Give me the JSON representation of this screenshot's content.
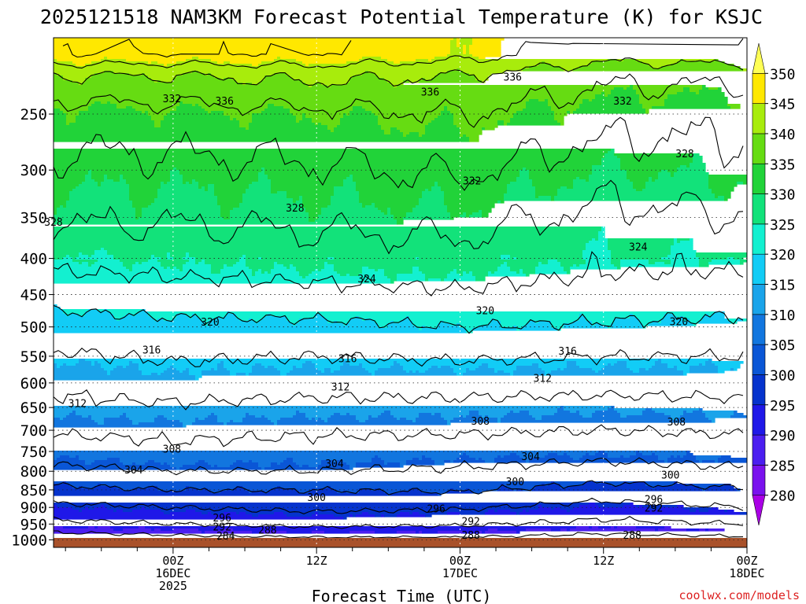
{
  "chart_data": {
    "type": "heatmap",
    "subtype": "time-height filled contour",
    "title": "2025121518 NAM3KM Forecast Potential Temperature (K) for KSJC",
    "xlabel": "Forecast Time (UTC)",
    "ylabel": "",
    "credit": "coolwx.com/models",
    "y_axis": {
      "unit": "hPa",
      "scale": "log-pressure",
      "range_hpa": [
        1025,
        195
      ],
      "ticks": [
        250,
        300,
        350,
        400,
        450,
        500,
        550,
        600,
        650,
        700,
        750,
        800,
        850,
        900,
        950,
        1000
      ],
      "tick_labels": [
        "250",
        "300",
        "350",
        "400",
        "450",
        "500",
        "550",
        "600",
        "650",
        "700",
        "750",
        "800",
        "850",
        "900",
        "950",
        "1000"
      ]
    },
    "x_axis": {
      "range_forecast_hours": [
        -4,
        54
      ],
      "ticks": [
        {
          "hour": 6,
          "lines": [
            "00Z",
            "16DEC",
            "2025"
          ]
        },
        {
          "hour": 18,
          "lines": [
            "12Z"
          ]
        },
        {
          "hour": 30,
          "lines": [
            "00Z",
            "17DEC"
          ]
        },
        {
          "hour": 42,
          "lines": [
            "12Z"
          ]
        },
        {
          "hour": 54,
          "lines": [
            "00Z",
            "18DEC"
          ]
        }
      ]
    },
    "colorbar": {
      "label_values": [
        350,
        345,
        340,
        335,
        330,
        325,
        320,
        315,
        310,
        305,
        300,
        295,
        290,
        285,
        280
      ],
      "levels": [
        280,
        285,
        290,
        295,
        300,
        305,
        310,
        315,
        320,
        325,
        330,
        335,
        340,
        345,
        350
      ],
      "colors": [
        "#aa00e6",
        "#7a12ee",
        "#4b1ef0",
        "#1f18e8",
        "#0533cd",
        "#0a56d6",
        "#1276df",
        "#1aa4ea",
        "#12ccf6",
        "#13f0d0",
        "#12e27a",
        "#21d339",
        "#66dc12",
        "#a8ec0c",
        "#ffe800",
        "#ffff55"
      ],
      "extends": "both"
    },
    "contour_interval_K": 4,
    "ground_color": "#a9512a",
    "theta_profiles": [
      {
        "hour": -4,
        "pressure_hpa": [
          1020,
          985,
          950,
          900,
          850,
          800,
          750,
          700,
          650,
          600,
          550,
          500,
          450,
          400,
          350,
          300,
          250,
          220,
          205
        ],
        "theta_K": [
          282,
          287,
          291,
          295,
          299,
          303,
          306,
          308.5,
          311,
          313,
          315.5,
          318,
          322,
          325,
          328.5,
          331,
          334,
          340,
          348
        ]
      },
      {
        "hour": 6,
        "pressure_hpa": [
          1020,
          985,
          950,
          900,
          850,
          800,
          750,
          700,
          650,
          600,
          550,
          500,
          450,
          400,
          350,
          300,
          250,
          220,
          205
        ],
        "theta_K": [
          283,
          288,
          292,
          296,
          300,
          304,
          307,
          309,
          311.5,
          314,
          316.5,
          319,
          322.5,
          325.5,
          328.5,
          331,
          334.5,
          340,
          348
        ]
      },
      {
        "hour": 18,
        "pressure_hpa": [
          1020,
          985,
          950,
          900,
          850,
          800,
          750,
          700,
          650,
          600,
          550,
          500,
          450,
          400,
          350,
          300,
          250,
          220,
          205
        ],
        "theta_K": [
          284,
          289,
          293,
          297,
          300,
          304,
          306.5,
          308.5,
          311,
          313.5,
          316,
          319,
          323,
          326,
          329,
          331.5,
          335,
          341,
          348
        ]
      },
      {
        "hour": 30,
        "pressure_hpa": [
          1020,
          985,
          950,
          900,
          850,
          800,
          750,
          700,
          650,
          600,
          550,
          500,
          450,
          400,
          350,
          300,
          250,
          220,
          205
        ],
        "theta_K": [
          284,
          289,
          292.5,
          296.5,
          300.5,
          303.5,
          306,
          308.5,
          311,
          313.5,
          316.5,
          320,
          323.5,
          326.5,
          329.5,
          332.5,
          336,
          340,
          346
        ]
      },
      {
        "hour": 42,
        "pressure_hpa": [
          1020,
          985,
          950,
          900,
          850,
          800,
          750,
          700,
          650,
          600,
          550,
          500,
          450,
          400,
          350,
          300,
          250,
          220,
          205
        ],
        "theta_K": [
          283,
          287.5,
          291,
          294.5,
          298.5,
          302.5,
          305.5,
          308,
          310.5,
          313.5,
          316,
          319.5,
          322.5,
          325,
          327,
          330,
          333.5,
          337,
          342
        ]
      },
      {
        "hour": 54,
        "pressure_hpa": [
          1020,
          985,
          950,
          900,
          850,
          800,
          750,
          700,
          650,
          600,
          550,
          500,
          450,
          400,
          350,
          300,
          250,
          220,
          205
        ],
        "theta_K": [
          284,
          288.5,
          292,
          296,
          299.5,
          303.5,
          306,
          308.5,
          311,
          313.5,
          316,
          319,
          322,
          325,
          328,
          330.5,
          333,
          337,
          343
        ]
      }
    ],
    "contour_labels": [
      {
        "value": "336",
        "hour": 34.4,
        "pressure_hpa": 222
      },
      {
        "value": "336",
        "hour": 27.5,
        "pressure_hpa": 233
      },
      {
        "value": "336",
        "hour": 10.3,
        "pressure_hpa": 240
      },
      {
        "value": "332",
        "hour": 5.9,
        "pressure_hpa": 238
      },
      {
        "value": "332",
        "hour": 43.6,
        "pressure_hpa": 240
      },
      {
        "value": "328",
        "hour": 48.8,
        "pressure_hpa": 285
      },
      {
        "value": "332",
        "hour": 31.0,
        "pressure_hpa": 311
      },
      {
        "value": "328",
        "hour": 16.2,
        "pressure_hpa": 340
      },
      {
        "value": "328",
        "hour": -4.0,
        "pressure_hpa": 356
      },
      {
        "value": "324",
        "hour": 44.9,
        "pressure_hpa": 386
      },
      {
        "value": "324",
        "hour": 22.2,
        "pressure_hpa": 428
      },
      {
        "value": "320",
        "hour": 32.1,
        "pressure_hpa": 475
      },
      {
        "value": "320",
        "hour": 9.1,
        "pressure_hpa": 493
      },
      {
        "value": "320",
        "hour": 48.3,
        "pressure_hpa": 492
      },
      {
        "value": "316",
        "hour": 4.2,
        "pressure_hpa": 540
      },
      {
        "value": "316",
        "hour": 20.6,
        "pressure_hpa": 555
      },
      {
        "value": "316",
        "hour": 39.0,
        "pressure_hpa": 542
      },
      {
        "value": "312",
        "hour": 36.9,
        "pressure_hpa": 592
      },
      {
        "value": "312",
        "hour": 20.0,
        "pressure_hpa": 609
      },
      {
        "value": "312",
        "hour": -2.0,
        "pressure_hpa": 642
      },
      {
        "value": "308",
        "hour": 31.7,
        "pressure_hpa": 680
      },
      {
        "value": "308",
        "hour": 48.1,
        "pressure_hpa": 682
      },
      {
        "value": "308",
        "hour": 5.9,
        "pressure_hpa": 745
      },
      {
        "value": "304",
        "hour": 35.9,
        "pressure_hpa": 764
      },
      {
        "value": "304",
        "hour": 19.5,
        "pressure_hpa": 781
      },
      {
        "value": "304",
        "hour": 2.7,
        "pressure_hpa": 797
      },
      {
        "value": "300",
        "hour": 47.6,
        "pressure_hpa": 811
      },
      {
        "value": "300",
        "hour": 34.6,
        "pressure_hpa": 829
      },
      {
        "value": "300",
        "hour": 18.0,
        "pressure_hpa": 872
      },
      {
        "value": "296",
        "hour": 46.2,
        "pressure_hpa": 878
      },
      {
        "value": "292",
        "hour": 46.2,
        "pressure_hpa": 903
      },
      {
        "value": "296",
        "hour": 28.0,
        "pressure_hpa": 905
      },
      {
        "value": "296",
        "hour": 10.1,
        "pressure_hpa": 932
      },
      {
        "value": "292",
        "hour": 30.9,
        "pressure_hpa": 943
      },
      {
        "value": "292",
        "hour": 10.1,
        "pressure_hpa": 960
      },
      {
        "value": "288",
        "hour": 13.9,
        "pressure_hpa": 970
      },
      {
        "value": "288",
        "hour": 30.9,
        "pressure_hpa": 986
      },
      {
        "value": "288",
        "hour": 44.4,
        "pressure_hpa": 986
      },
      {
        "value": "284",
        "hour": 10.4,
        "pressure_hpa": 989
      }
    ]
  }
}
